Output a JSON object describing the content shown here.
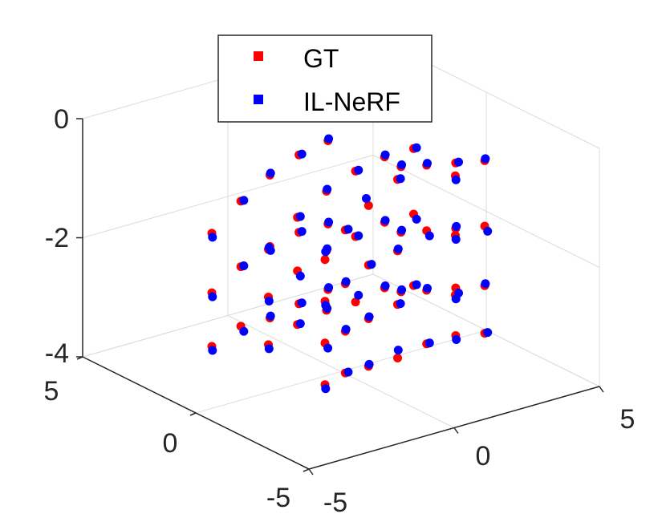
{
  "chart_data": {
    "type": "scatter",
    "projection": "3d",
    "grid": true,
    "legend_placement": "top",
    "xlim": [
      -5,
      5
    ],
    "ylim": [
      -5,
      5
    ],
    "zlim": [
      -4,
      0
    ],
    "x_ticks": [
      "-5",
      "0",
      "5"
    ],
    "y_ticks": [
      "-5",
      "0",
      "5"
    ],
    "z_ticks": [
      "-4",
      "-2",
      "0"
    ],
    "series": [
      {
        "name": "GT",
        "color": "#ff0000",
        "points": [
          [
            -2.5,
            -2.5,
            -1.3
          ],
          [
            -1.8,
            -2.5,
            -0.9
          ],
          [
            -1.0,
            -2.5,
            -0.6
          ],
          [
            0.0,
            -2.5,
            -0.3
          ],
          [
            1.0,
            -2.5,
            -0.2
          ],
          [
            2.0,
            -2.5,
            -0.3
          ],
          [
            3.0,
            -2.5,
            -0.4
          ],
          [
            -2.5,
            -2.5,
            -2.0
          ],
          [
            -1.8,
            -2.5,
            -1.8
          ],
          [
            -1.0,
            -2.5,
            -1.6
          ],
          [
            0.0,
            -2.5,
            -1.5
          ],
          [
            1.0,
            -2.5,
            -1.3
          ],
          [
            2.0,
            -2.5,
            -1.4
          ],
          [
            3.0,
            -2.5,
            -1.5
          ],
          [
            -2.5,
            -2.5,
            -2.7
          ],
          [
            -1.8,
            -2.5,
            -2.6
          ],
          [
            -1.0,
            -2.5,
            -2.5
          ],
          [
            0.0,
            -2.5,
            -2.4
          ],
          [
            1.0,
            -2.5,
            -2.3
          ],
          [
            2.0,
            -2.5,
            -2.4
          ],
          [
            3.0,
            -2.5,
            -2.5
          ],
          [
            -2.5,
            -2.5,
            -3.4
          ],
          [
            -1.8,
            -2.5,
            -3.3
          ],
          [
            -1.0,
            -2.5,
            -3.3
          ],
          [
            0.0,
            -2.5,
            -3.3
          ],
          [
            1.0,
            -2.5,
            -3.2
          ],
          [
            2.0,
            -2.5,
            -3.2
          ],
          [
            3.0,
            -2.5,
            -3.3
          ],
          [
            -2.5,
            0.0,
            -1.6
          ],
          [
            -1.5,
            0.0,
            -1.2
          ],
          [
            -0.5,
            0.0,
            -0.9
          ],
          [
            0.5,
            0.0,
            -0.7
          ],
          [
            1.5,
            0.0,
            -0.6
          ],
          [
            2.5,
            0.0,
            -0.6
          ],
          [
            -2.5,
            0.0,
            -2.4
          ],
          [
            -1.5,
            0.0,
            -2.1
          ],
          [
            -0.5,
            0.0,
            -1.9
          ],
          [
            0.5,
            0.0,
            -1.8
          ],
          [
            1.5,
            0.0,
            -1.7
          ],
          [
            2.5,
            0.0,
            -1.7
          ],
          [
            -2.5,
            0.0,
            -3.2
          ],
          [
            -1.5,
            0.0,
            -3.0
          ],
          [
            -0.5,
            0.0,
            -2.9
          ],
          [
            0.5,
            0.0,
            -2.9
          ],
          [
            1.5,
            0.0,
            -2.8
          ],
          [
            2.5,
            0.0,
            -2.9
          ],
          [
            -2.5,
            2.5,
            -1.8
          ],
          [
            -1.5,
            2.5,
            -1.4
          ],
          [
            -0.5,
            2.5,
            -1.1
          ],
          [
            0.5,
            2.5,
            -0.9
          ],
          [
            1.5,
            2.5,
            -0.8
          ],
          [
            -2.5,
            2.5,
            -2.8
          ],
          [
            -1.5,
            2.5,
            -2.5
          ],
          [
            -0.5,
            2.5,
            -2.3
          ],
          [
            0.5,
            2.5,
            -2.2
          ],
          [
            1.5,
            2.5,
            -2.2
          ],
          [
            -2.5,
            2.5,
            -3.7
          ],
          [
            -1.5,
            2.5,
            -3.5
          ],
          [
            -0.5,
            2.5,
            -3.5
          ],
          [
            0.5,
            2.5,
            -3.4
          ],
          [
            1.5,
            2.5,
            -3.3
          ],
          [
            3.0,
            -1.2,
            -0.9
          ],
          [
            3.0,
            -1.2,
            -1.9
          ],
          [
            3.0,
            -1.2,
            -2.9
          ],
          [
            3.0,
            1.2,
            -1.2
          ],
          [
            3.0,
            1.2,
            -2.3
          ],
          [
            3.0,
            1.2,
            -3.3
          ]
        ]
      },
      {
        "name": "IL-NeRF",
        "color": "#0000ff",
        "points": [
          [
            -2.4,
            -2.4,
            -1.2
          ],
          [
            -1.7,
            -2.5,
            -0.9
          ],
          [
            -1.0,
            -2.4,
            -0.5
          ],
          [
            0.1,
            -2.5,
            -0.3
          ],
          [
            1.1,
            -2.4,
            -0.2
          ],
          [
            2.1,
            -2.5,
            -0.3
          ],
          [
            3.1,
            -2.4,
            -0.4
          ],
          [
            -2.4,
            -2.4,
            -2.1
          ],
          [
            -1.7,
            -2.4,
            -1.8
          ],
          [
            -0.9,
            -2.5,
            -1.6
          ],
          [
            0.1,
            -2.4,
            -1.5
          ],
          [
            1.1,
            -2.5,
            -1.4
          ],
          [
            2.1,
            -2.4,
            -1.4
          ],
          [
            3.1,
            -2.5,
            -1.6
          ],
          [
            -2.4,
            -2.5,
            -2.8
          ],
          [
            -1.7,
            -2.4,
            -2.6
          ],
          [
            -0.9,
            -2.4,
            -2.5
          ],
          [
            0.1,
            -2.5,
            -2.4
          ],
          [
            1.1,
            -2.4,
            -2.3
          ],
          [
            2.1,
            -2.5,
            -2.5
          ],
          [
            3.1,
            -2.4,
            -2.5
          ],
          [
            -2.4,
            -2.4,
            -3.5
          ],
          [
            -1.7,
            -2.5,
            -3.3
          ],
          [
            -0.9,
            -2.4,
            -3.3
          ],
          [
            0.1,
            -2.4,
            -3.2
          ],
          [
            1.1,
            -2.5,
            -3.2
          ],
          [
            2.1,
            -2.4,
            -3.3
          ],
          [
            3.1,
            -2.5,
            -3.3
          ],
          [
            -2.4,
            0.1,
            -1.6
          ],
          [
            -1.4,
            0.0,
            -1.2
          ],
          [
            -0.4,
            0.1,
            -0.9
          ],
          [
            0.6,
            0.0,
            -0.7
          ],
          [
            1.6,
            0.1,
            -0.6
          ],
          [
            2.6,
            0.0,
            -0.6
          ],
          [
            -2.4,
            0.1,
            -2.5
          ],
          [
            -1.4,
            0.0,
            -2.2
          ],
          [
            -0.4,
            0.1,
            -1.9
          ],
          [
            0.6,
            0.0,
            -1.8
          ],
          [
            1.6,
            0.1,
            -1.7
          ],
          [
            2.6,
            0.0,
            -1.8
          ],
          [
            -2.4,
            0.1,
            -3.3
          ],
          [
            -1.4,
            0.0,
            -3.0
          ],
          [
            -0.4,
            0.1,
            -2.9
          ],
          [
            0.6,
            0.0,
            -2.8
          ],
          [
            1.6,
            0.1,
            -2.8
          ],
          [
            2.6,
            0.0,
            -2.9
          ],
          [
            -2.4,
            2.6,
            -1.9
          ],
          [
            -1.4,
            2.5,
            -1.4
          ],
          [
            -0.4,
            2.6,
            -1.1
          ],
          [
            0.6,
            2.5,
            -0.9
          ],
          [
            1.6,
            2.6,
            -0.8
          ],
          [
            -2.4,
            2.6,
            -2.9
          ],
          [
            -1.4,
            2.5,
            -2.5
          ],
          [
            -0.4,
            2.6,
            -2.4
          ],
          [
            0.6,
            2.5,
            -2.2
          ],
          [
            1.6,
            2.6,
            -2.2
          ],
          [
            -2.4,
            2.6,
            -3.8
          ],
          [
            -1.4,
            2.5,
            -3.6
          ],
          [
            -0.4,
            2.6,
            -3.5
          ],
          [
            0.6,
            2.5,
            -3.4
          ],
          [
            1.6,
            2.6,
            -3.3
          ],
          [
            3.1,
            -1.1,
            -1.0
          ],
          [
            3.1,
            -1.1,
            -2.0
          ],
          [
            3.1,
            -1.1,
            -3.0
          ],
          [
            3.1,
            1.3,
            -1.2
          ],
          [
            3.1,
            1.3,
            -2.3
          ],
          [
            3.1,
            1.3,
            -3.3
          ]
        ]
      }
    ]
  }
}
